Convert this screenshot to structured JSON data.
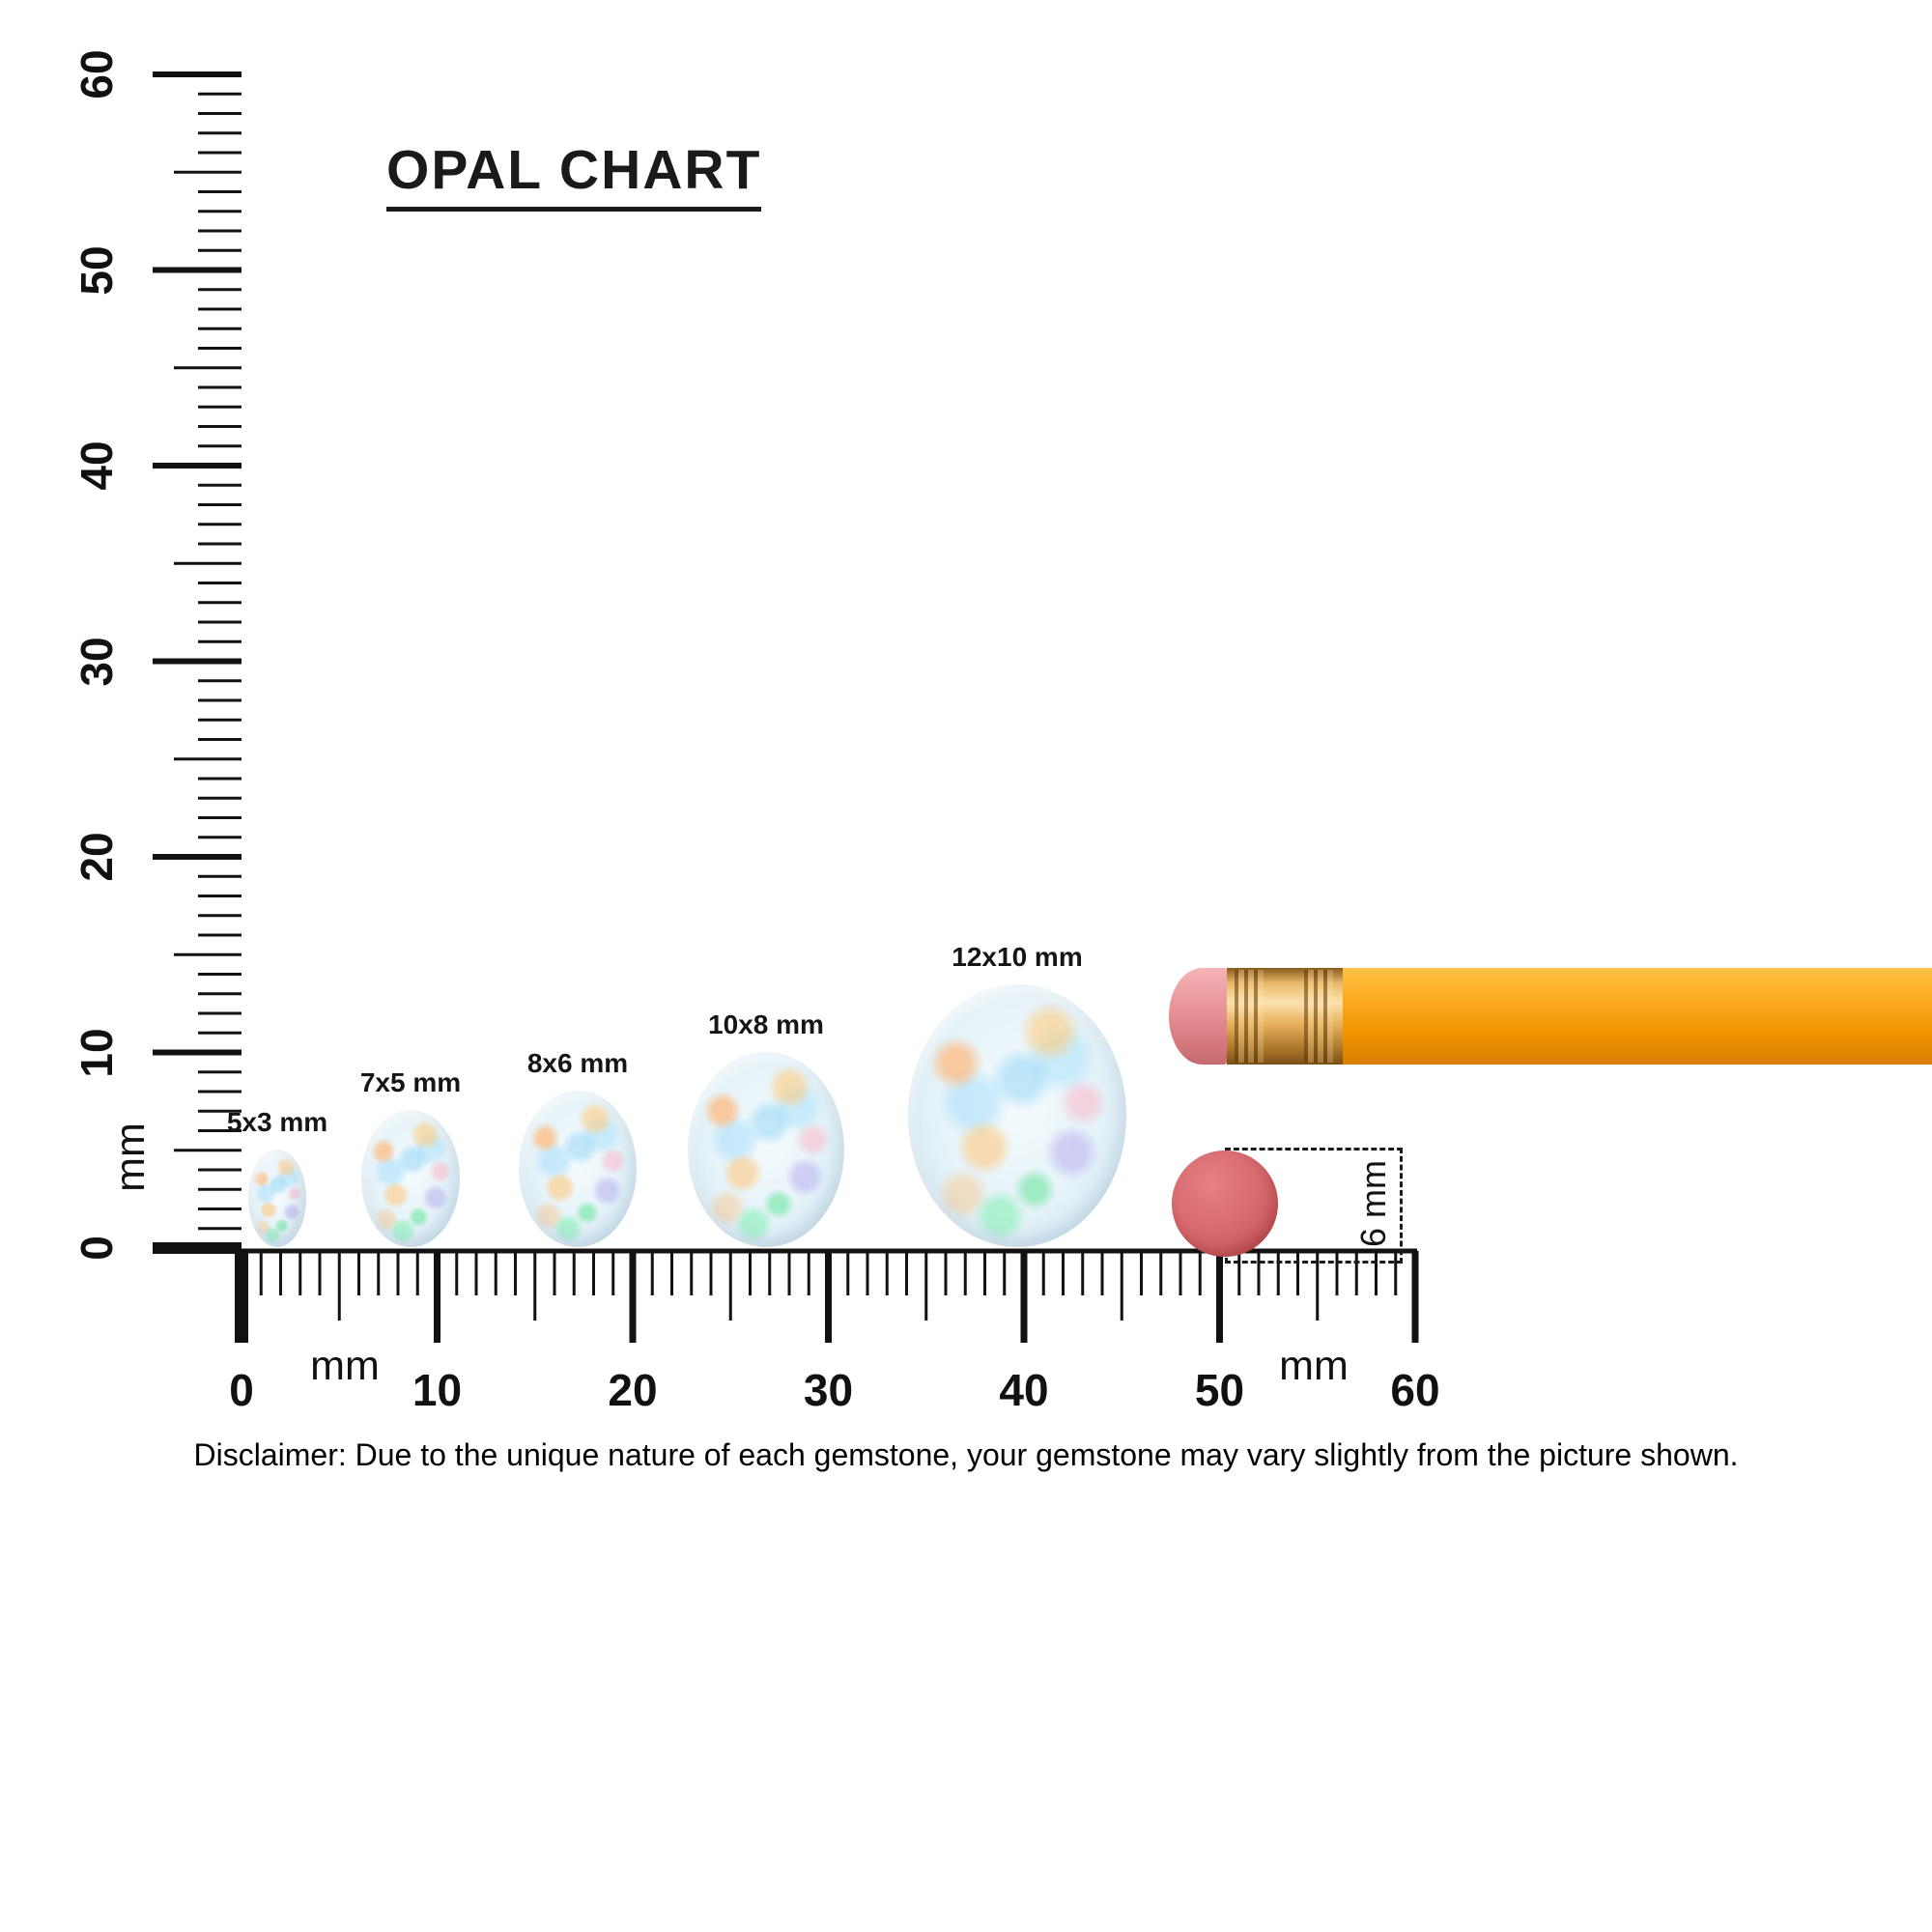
{
  "title": "OPAL CHART",
  "opals": [
    {
      "label": "5x3 mm",
      "width_mm": 3,
      "height_mm": 5
    },
    {
      "label": "7x5 mm",
      "width_mm": 5,
      "height_mm": 7
    },
    {
      "label": "8x6 mm",
      "width_mm": 6,
      "height_mm": 8
    },
    {
      "label": "10x8 mm",
      "width_mm": 8,
      "height_mm": 10
    },
    {
      "label": "12x10 mm",
      "width_mm": 10,
      "height_mm": 12
    }
  ],
  "vertical_ruler": {
    "unit_label": "mm",
    "major_labels": [
      "0",
      "10",
      "20",
      "30",
      "40",
      "50",
      "60"
    ],
    "range_mm": [
      0,
      60
    ]
  },
  "horizontal_ruler": {
    "unit_labels": [
      "mm",
      "mm"
    ],
    "major_labels": [
      "0",
      "10",
      "20",
      "30",
      "40",
      "50",
      "60"
    ],
    "range_mm": [
      0,
      60
    ]
  },
  "reference_objects": {
    "pencil": {
      "name": "pencil-eraser-end"
    },
    "eraser_disc": {
      "diameter_label": "6 mm"
    }
  },
  "disclaimer": "Disclaimer: Due to the unique nature of each gemstone, your gemstone may vary slightly from the picture shown.",
  "colors": {
    "tick": "#111111",
    "opal_base": "#e7f3f9",
    "pencil_body": "#f9a11b",
    "pencil_ferrule": "#d79a44",
    "pencil_eraser": "#e08a8e",
    "eraser_disc": "#cf6065"
  }
}
